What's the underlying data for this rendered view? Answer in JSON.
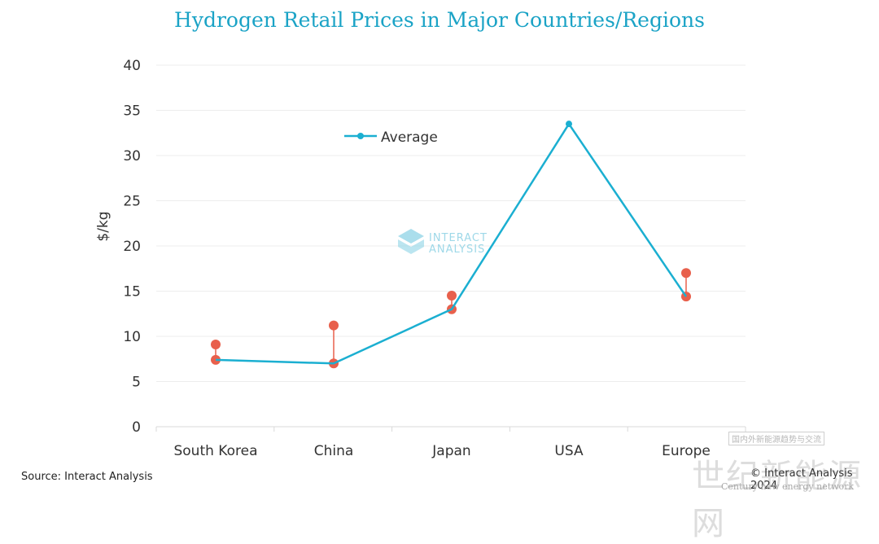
{
  "chart_data": {
    "type": "line",
    "title": "Hydrogen Retail Prices in Major Countries/Regions",
    "ylabel": "$/kg",
    "xlabel": "",
    "ylim": [
      0,
      40
    ],
    "yticks": [
      0,
      5,
      10,
      15,
      20,
      25,
      30,
      35,
      40
    ],
    "categories": [
      "South Korea",
      "China",
      "Japan",
      "USA",
      "Europe"
    ],
    "grid": true,
    "legend_position": "top-left",
    "series": [
      {
        "name": "Average",
        "color": "#1BAFD1",
        "values": [
          7.4,
          7.0,
          13.0,
          33.5,
          14.4
        ]
      }
    ],
    "ranges": {
      "color": "#E8604C",
      "low": [
        7.4,
        7.0,
        13.0,
        null,
        14.4
      ],
      "high": [
        9.1,
        11.2,
        14.5,
        null,
        17.0
      ]
    }
  },
  "watermark": {
    "line1": "INTERACT",
    "line2": "ANALYSIS"
  },
  "footer": {
    "source": "Source: Interact Analysis",
    "copyright": "© Interact Analysis 2024"
  },
  "overlay": {
    "cn_small": "国内外新能源趋势与交流",
    "cn_big": "世纪新能源网",
    "en": "Century new energy network"
  }
}
